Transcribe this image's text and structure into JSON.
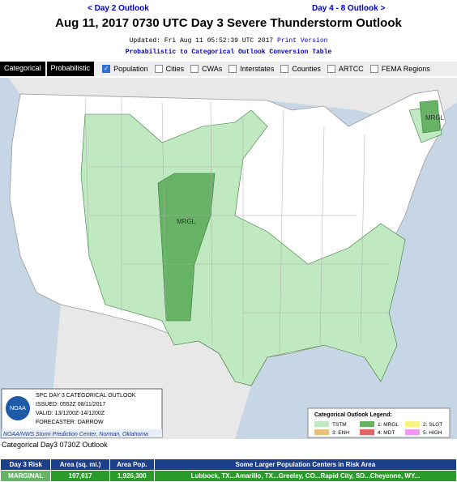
{
  "nav": {
    "prev": "< Day 2 Outlook",
    "next": "Day 4 - 8 Outlook >"
  },
  "title": "Aug 11, 2017 0730 UTC Day 3 Severe Thunderstorm Outlook",
  "updated": "Updated: Fri Aug 11 05:52:39 UTC 2017",
  "print_version": "Print Version",
  "conversion_link": "Probabilistic to Categorical Outlook Conversion Table",
  "tabs": [
    "Categorical",
    "Probabilistic"
  ],
  "layers": [
    {
      "label": "Population",
      "checked": true
    },
    {
      "label": "Cities",
      "checked": false
    },
    {
      "label": "CWAs",
      "checked": false
    },
    {
      "label": "Interstates",
      "checked": false
    },
    {
      "label": "Counties",
      "checked": false
    },
    {
      "label": "ARTCC",
      "checked": false
    },
    {
      "label": "FEMA Regions",
      "checked": false
    }
  ],
  "map": {
    "labels": [
      "MRGL",
      "MRGL"
    ],
    "info": [
      "SPC DAY 3 CATEGORICAL OUTLOOK",
      "ISSUED: 0552Z 08/11/2017",
      "VALID: 13/1200Z-14/1200Z",
      "FORECASTER: DARROW"
    ],
    "logo": "NOAA",
    "credit": "NOAA/NWS Storm Prediction Center, Norman, Oklahoma"
  },
  "legend": {
    "title": "Categorical Outlook Legend:",
    "items": [
      {
        "label": "TSTM",
        "color": "#c1e9c1"
      },
      {
        "label": "1: MRGL",
        "color": "#66b366"
      },
      {
        "label": "2: SLGT",
        "color": "#f6f67f"
      },
      {
        "label": "3: ENH",
        "color": "#e6c27a"
      },
      {
        "label": "4: MDT",
        "color": "#e06666"
      },
      {
        "label": "5: HIGH",
        "color": "#ee99ee"
      }
    ]
  },
  "caption": "Categorical Day3 0730Z Outlook",
  "table": {
    "headers": [
      "Day 3 Risk",
      "Area (sq. mi.)",
      "Area Pop.",
      "Some Larger Population Centers in Risk Area"
    ],
    "rows": [
      [
        "MARGINAL",
        "197,617",
        "1,926,300",
        "Lubbock, TX...Amarillo, TX...Greeley, CO...Rapid City, SD...Cheyenne, WY..."
      ]
    ]
  }
}
